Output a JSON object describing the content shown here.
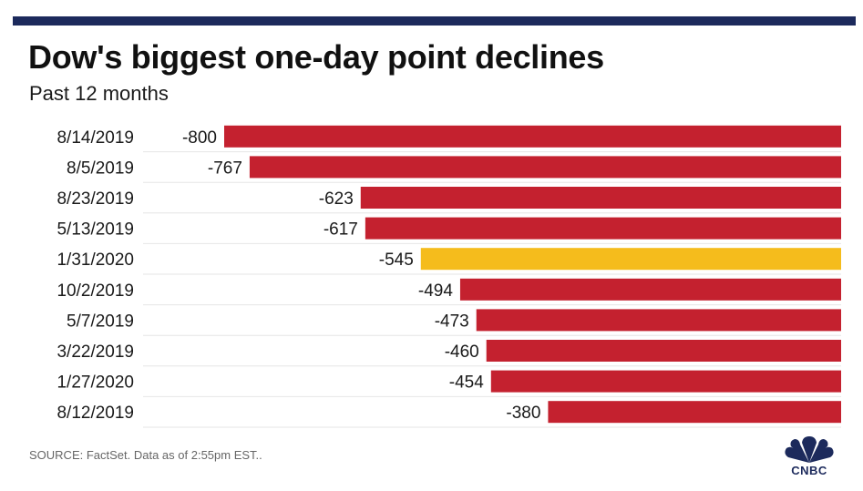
{
  "header": {
    "title": "Dow's biggest one-day point declines",
    "subtitle": "Past 12 months"
  },
  "footer": {
    "source": "SOURCE: FactSet. Data as of 2:55pm EST..",
    "logo_text": "CNBC"
  },
  "colors": {
    "bar": "#c4212f",
    "highlight": "#f5bc1c",
    "header_bar": "#1c2a5c"
  },
  "chart_data": {
    "type": "bar",
    "orientation": "horizontal",
    "categories": [
      "8/14/2019",
      "8/5/2019",
      "8/23/2019",
      "5/13/2019",
      "1/31/2020",
      "10/2/2019",
      "5/7/2019",
      "3/22/2019",
      "1/27/2020",
      "8/12/2019"
    ],
    "values": [
      -800,
      -767,
      -623,
      -617,
      -545,
      -494,
      -473,
      -460,
      -454,
      -380
    ],
    "data_labels": [
      "-800",
      "-767",
      "-623",
      "-617",
      "-545",
      "-494",
      "-473",
      "-460",
      "-454",
      "-380"
    ],
    "highlighted_category": "1/31/2020",
    "grid": false,
    "legend": "none"
  }
}
